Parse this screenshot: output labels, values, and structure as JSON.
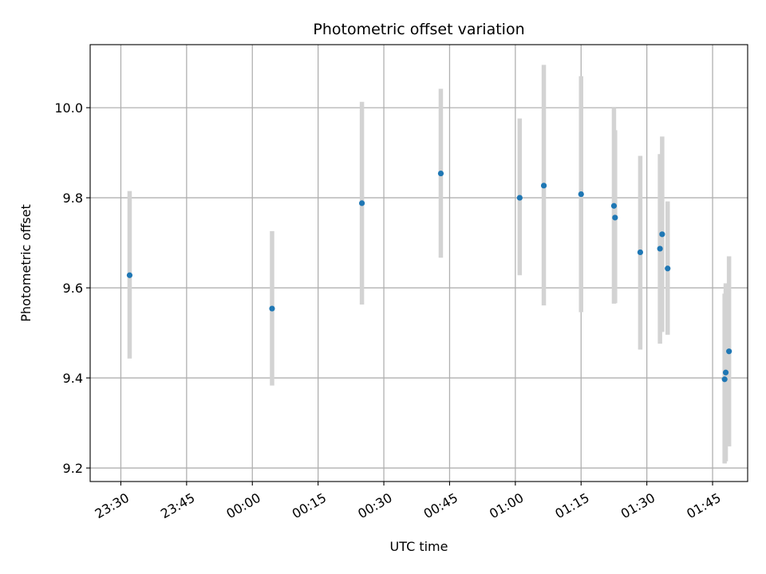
{
  "chart_data": {
    "type": "scatter",
    "title": "Photometric offset variation",
    "xlabel": "UTC time",
    "ylabel": "Photometric offset",
    "xlim": [
      "23:23",
      "01:53"
    ],
    "ylim": [
      9.17,
      10.14
    ],
    "x_ticks": [
      "23:30",
      "23:45",
      "00:00",
      "00:15",
      "00:30",
      "00:45",
      "01:00",
      "01:15",
      "01:30",
      "01:45"
    ],
    "y_ticks": [
      9.2,
      9.4,
      9.6,
      9.8,
      10.0
    ],
    "grid": true,
    "error_bar_color": "#d3d3d3",
    "point_color": "#1f77b4",
    "points": [
      {
        "x": "23:32:00",
        "y": 9.628,
        "ylow": 9.443,
        "yhigh": 9.815
      },
      {
        "x": "00:04:30",
        "y": 9.554,
        "ylow": 9.383,
        "yhigh": 9.726
      },
      {
        "x": "00:25:00",
        "y": 9.788,
        "ylow": 9.563,
        "yhigh": 10.013
      },
      {
        "x": "00:43:00",
        "y": 9.854,
        "ylow": 9.667,
        "yhigh": 10.042
      },
      {
        "x": "01:01:00",
        "y": 9.8,
        "ylow": 9.628,
        "yhigh": 9.976
      },
      {
        "x": "01:06:30",
        "y": 9.827,
        "ylow": 9.561,
        "yhigh": 10.095
      },
      {
        "x": "01:15:00",
        "y": 9.808,
        "ylow": 9.546,
        "yhigh": 10.07
      },
      {
        "x": "01:22:30",
        "y": 9.782,
        "ylow": 9.565,
        "yhigh": 10.0
      },
      {
        "x": "01:22:45",
        "y": 9.756,
        "ylow": 9.566,
        "yhigh": 9.95
      },
      {
        "x": "01:28:30",
        "y": 9.679,
        "ylow": 9.463,
        "yhigh": 9.893
      },
      {
        "x": "01:33:00",
        "y": 9.687,
        "ylow": 9.476,
        "yhigh": 9.897
      },
      {
        "x": "01:33:30",
        "y": 9.719,
        "ylow": 9.502,
        "yhigh": 9.936
      },
      {
        "x": "01:34:45",
        "y": 9.643,
        "ylow": 9.496,
        "yhigh": 9.792
      },
      {
        "x": "01:47:45",
        "y": 9.397,
        "ylow": 9.21,
        "yhigh": 9.587
      },
      {
        "x": "01:48:00",
        "y": 9.412,
        "ylow": 9.215,
        "yhigh": 9.61
      },
      {
        "x": "01:48:45",
        "y": 9.459,
        "ylow": 9.248,
        "yhigh": 9.67
      }
    ]
  }
}
